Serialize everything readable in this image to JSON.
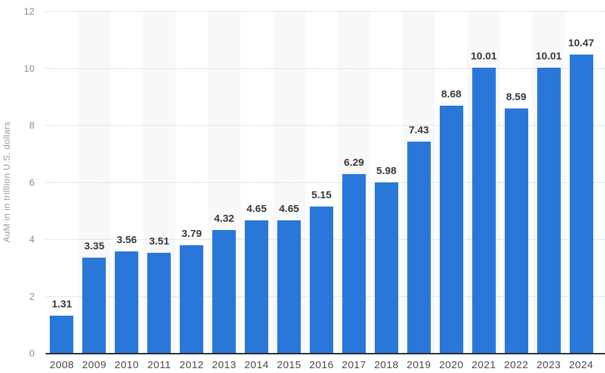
{
  "chart_data": {
    "type": "bar",
    "title": "",
    "categories": [
      "2008",
      "2009",
      "2010",
      "2011",
      "2012",
      "2013",
      "2014",
      "2015",
      "2016",
      "2017",
      "2018",
      "2019",
      "2020",
      "2021",
      "2022",
      "2023",
      "2024"
    ],
    "values": [
      1.31,
      3.35,
      3.56,
      3.51,
      3.79,
      4.32,
      4.65,
      4.65,
      5.15,
      6.29,
      5.98,
      7.43,
      8.68,
      10.01,
      8.59,
      10.01,
      10.47
    ],
    "value_labels": [
      "1.31",
      "3.35",
      "3.56",
      "3.51",
      "3.79",
      "4.32",
      "4.65",
      "4.65",
      "5.15",
      "6.29",
      "5.98",
      "7.43",
      "8.68",
      "10.01",
      "8.59",
      "10.01",
      "10.47"
    ],
    "xlabel": "",
    "ylabel": "AuM in in trilllion U.S. dollars",
    "ylim": [
      0,
      12
    ],
    "yticks": [
      0,
      2,
      4,
      6,
      8,
      10,
      12
    ],
    "grid": "horizontal-dotted",
    "alternating_column_bands": true,
    "legend": "none",
    "colors": {
      "bar": "#2a77da",
      "band": "#f8f8f8",
      "gridline": "#cdcdcd",
      "axis_line": "#262626",
      "tick_label": "#8c8c8c",
      "category_label": "#4a4a4a",
      "value_label": "#383838",
      "axis_title": "#9b9b9b",
      "background": "#ffffff"
    }
  }
}
